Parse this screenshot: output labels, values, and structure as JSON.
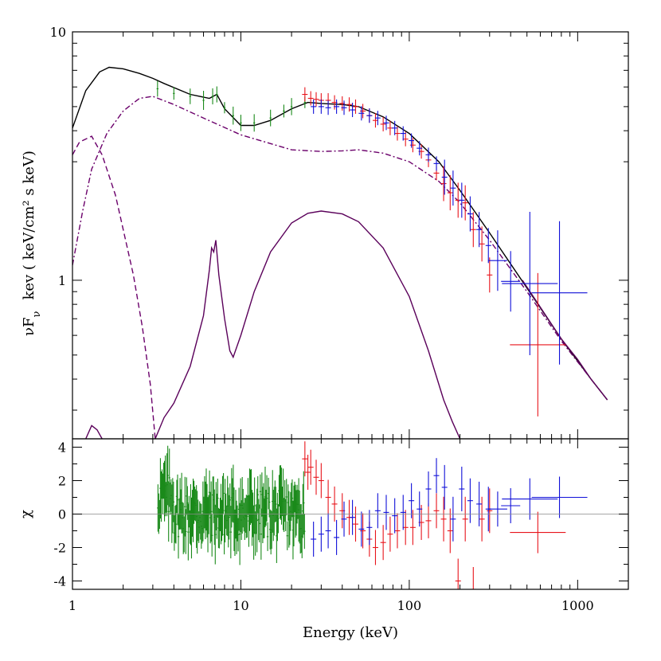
{
  "chart_data": {
    "type": "line",
    "xlabel": "Energy (keV)",
    "x_scale": "log",
    "xlim": [
      1,
      2000
    ],
    "x_ticks": [
      "1",
      "10",
      "100",
      "1000"
    ],
    "panels": [
      {
        "id": "spectrum",
        "ylabel_prefix": "νF",
        "ylabel_sub": "ν",
        "ylabel_unit": "kev ( keV/cm² s keV)",
        "y_scale": "log",
        "ylim": [
          0.23,
          10
        ],
        "y_ticks": [
          "1",
          "10"
        ],
        "models": [
          {
            "style": "solid",
            "color": "#000000",
            "points": [
              [
                1.0,
                4.1
              ],
              [
                1.2,
                5.8
              ],
              [
                1.45,
                6.9
              ],
              [
                1.65,
                7.2
              ],
              [
                2.0,
                7.1
              ],
              [
                2.5,
                6.8
              ],
              [
                3.0,
                6.5
              ],
              [
                3.5,
                6.2
              ],
              [
                5,
                5.6
              ],
              [
                6.5,
                5.4
              ],
              [
                7.2,
                5.6
              ],
              [
                8,
                4.9
              ],
              [
                10,
                4.2
              ],
              [
                12,
                4.2
              ],
              [
                15,
                4.4
              ],
              [
                20,
                4.9
              ],
              [
                25,
                5.2
              ],
              [
                30,
                5.15
              ],
              [
                40,
                5.1
              ],
              [
                50,
                5.0
              ],
              [
                70,
                4.55
              ],
              [
                100,
                3.9
              ],
              [
                150,
                3.0
              ],
              [
                200,
                2.3
              ],
              [
                300,
                1.55
              ],
              [
                500,
                0.93
              ],
              [
                800,
                0.58
              ],
              [
                1200,
                0.4
              ],
              [
                1500,
                0.33
              ]
            ]
          },
          {
            "style": "dashdot",
            "color": "#6b006b",
            "points": [
              [
                1.0,
                1.15
              ],
              [
                1.15,
                1.9
              ],
              [
                1.3,
                2.8
              ],
              [
                1.6,
                3.9
              ],
              [
                2.0,
                4.8
              ],
              [
                2.5,
                5.4
              ],
              [
                3.0,
                5.5
              ],
              [
                4,
                5.1
              ],
              [
                6,
                4.5
              ],
              [
                10,
                3.85
              ],
              [
                20,
                3.35
              ],
              [
                30,
                3.3
              ],
              [
                40,
                3.32
              ],
              [
                50,
                3.35
              ],
              [
                70,
                3.25
              ],
              [
                100,
                3.0
              ],
              [
                150,
                2.5
              ],
              [
                200,
                2.05
              ],
              [
                300,
                1.45
              ],
              [
                500,
                0.9
              ],
              [
                800,
                0.57
              ],
              [
                1200,
                0.4
              ],
              [
                1500,
                0.33
              ]
            ]
          },
          {
            "style": "dashed",
            "color": "#6b006b",
            "points": [
              [
                1.0,
                3.2
              ],
              [
                1.1,
                3.6
              ],
              [
                1.3,
                3.8
              ],
              [
                1.5,
                3.2
              ],
              [
                1.8,
                2.2
              ],
              [
                2.0,
                1.6
              ],
              [
                2.3,
                1.05
              ],
              [
                2.6,
                0.65
              ],
              [
                2.9,
                0.38
              ],
              [
                3.1,
                0.23
              ]
            ]
          },
          {
            "style": "solid",
            "color": "#5a005a",
            "points": [
              [
                1.2,
                0.23
              ],
              [
                1.3,
                0.26
              ],
              [
                1.4,
                0.25
              ],
              [
                1.5,
                0.23
              ]
            ]
          },
          {
            "style": "solid",
            "color": "#5a005a",
            "points": [
              [
                3.1,
                0.23
              ],
              [
                3.5,
                0.28
              ],
              [
                4,
                0.32
              ],
              [
                5,
                0.45
              ],
              [
                6,
                0.72
              ],
              [
                6.5,
                1.1
              ],
              [
                6.7,
                1.35
              ],
              [
                6.9,
                1.3
              ],
              [
                7.1,
                1.45
              ],
              [
                7.4,
                1.05
              ],
              [
                8,
                0.7
              ],
              [
                8.6,
                0.52
              ],
              [
                9,
                0.49
              ],
              [
                10,
                0.6
              ],
              [
                12,
                0.9
              ],
              [
                15,
                1.3
              ],
              [
                20,
                1.7
              ],
              [
                25,
                1.86
              ],
              [
                30,
                1.9
              ],
              [
                40,
                1.85
              ],
              [
                50,
                1.72
              ],
              [
                70,
                1.35
              ],
              [
                100,
                0.86
              ],
              [
                130,
                0.52
              ],
              [
                160,
                0.33
              ],
              [
                180,
                0.27
              ],
              [
                200,
                0.23
              ]
            ]
          },
          {
            "style": "solid",
            "color": "#5a005a",
            "points": [
              [
                470,
                1.0
              ],
              [
                600,
                0.78
              ],
              [
                800,
                0.58
              ],
              [
                1000,
                0.48
              ],
              [
                1200,
                0.4
              ],
              [
                1500,
                0.33
              ]
            ]
          }
        ],
        "data_series": [
          {
            "instrument": "green",
            "color": "#1a8a1a",
            "x_range": [
              3.2,
              24
            ],
            "n": 180,
            "points": [
              [
                3.2,
                5.9
              ],
              [
                4,
                5.65
              ],
              [
                5,
                5.5
              ],
              [
                6,
                5.3
              ],
              [
                6.8,
                5.5
              ],
              [
                7.2,
                5.6
              ],
              [
                8,
                4.95
              ],
              [
                9,
                4.6
              ],
              [
                10,
                4.3
              ],
              [
                12,
                4.3
              ],
              [
                15,
                4.5
              ],
              [
                18,
                4.8
              ],
              [
                20,
                5.0
              ],
              [
                24,
                5.2
              ]
            ]
          },
          {
            "instrument": "red",
            "color": "#e8141b",
            "points": [
              [
                24,
                5.6
              ],
              [
                26,
                5.4
              ],
              [
                28,
                5.35
              ],
              [
                30,
                5.3
              ],
              [
                33,
                5.3
              ],
              [
                36,
                5.2
              ],
              [
                40,
                5.15
              ],
              [
                44,
                5.1
              ],
              [
                48,
                5.0
              ],
              [
                53,
                4.8
              ],
              [
                58,
                4.6
              ],
              [
                63,
                4.4
              ],
              [
                70,
                4.25
              ],
              [
                77,
                4.1
              ],
              [
                85,
                3.9
              ],
              [
                95,
                3.7
              ],
              [
                105,
                3.5
              ],
              [
                118,
                3.3
              ],
              [
                130,
                3.05
              ],
              [
                145,
                2.7
              ],
              [
                160,
                2.45
              ],
              [
                175,
                2.25
              ],
              [
                195,
                2.1
              ],
              [
                215,
                2.05
              ],
              [
                240,
                1.6
              ],
              [
                270,
                1.4
              ],
              [
                300,
                1.05
              ],
              [
                580,
                0.55
              ]
            ]
          },
          {
            "instrument": "blue",
            "color": "#1010d8",
            "points": [
              [
                27,
                5.0
              ],
              [
                30,
                5.0
              ],
              [
                33,
                4.95
              ],
              [
                37,
                5.0
              ],
              [
                41,
                4.95
              ],
              [
                46,
                4.85
              ],
              [
                52,
                4.7
              ],
              [
                58,
                4.6
              ],
              [
                65,
                4.5
              ],
              [
                73,
                4.3
              ],
              [
                82,
                4.1
              ],
              [
                92,
                3.9
              ],
              [
                103,
                3.65
              ],
              [
                115,
                3.4
              ],
              [
                130,
                3.2
              ],
              [
                145,
                2.95
              ],
              [
                162,
                2.6
              ],
              [
                182,
                2.35
              ],
              [
                205,
                2.1
              ],
              [
                230,
                1.85
              ],
              [
                260,
                1.6
              ],
              [
                295,
                1.38
              ],
              [
                335,
                1.2
              ],
              [
                400,
                0.99
              ],
              [
                520,
                0.97
              ],
              [
                780,
                0.89
              ]
            ]
          }
        ]
      },
      {
        "id": "residuals",
        "ylabel": "χ",
        "y_scale": "linear",
        "ylim": [
          -4.5,
          4.5
        ],
        "y_ticks": [
          "-4",
          "-2",
          "0",
          "2",
          "4"
        ],
        "zero_line": true,
        "data_series": [
          {
            "instrument": "green",
            "color": "#1a8a1a",
            "x_range": [
              3.2,
              24
            ],
            "n": 180,
            "scatter_amplitude": 1.4
          },
          {
            "instrument": "red",
            "color": "#e8141b",
            "points": [
              [
                24,
                3.3
              ],
              [
                25,
                2.5
              ],
              [
                26,
                2.8
              ],
              [
                28,
                2.2
              ],
              [
                30,
                2.0
              ],
              [
                33,
                1.0
              ],
              [
                36,
                0.6
              ],
              [
                40,
                0.2
              ],
              [
                44,
                -0.2
              ],
              [
                48,
                -0.6
              ],
              [
                53,
                -1.0
              ],
              [
                58,
                -1.5
              ],
              [
                63,
                -2.0
              ],
              [
                70,
                -1.7
              ],
              [
                77,
                -1.2
              ],
              [
                85,
                -1.0
              ],
              [
                95,
                -0.8
              ],
              [
                105,
                -0.8
              ],
              [
                118,
                -0.5
              ],
              [
                130,
                -0.4
              ],
              [
                145,
                0.2
              ],
              [
                160,
                -0.3
              ],
              [
                175,
                -1.0
              ],
              [
                195,
                -4.0
              ],
              [
                215,
                -0.3
              ],
              [
                240,
                -4.5
              ],
              [
                270,
                -0.3
              ],
              [
                300,
                0.2
              ],
              [
                580,
                -1.1
              ]
            ]
          },
          {
            "instrument": "blue",
            "color": "#1010d8",
            "points": [
              [
                27,
                -1.5
              ],
              [
                30,
                -1.2
              ],
              [
                33,
                -1.0
              ],
              [
                37,
                -1.4
              ],
              [
                41,
                -0.3
              ],
              [
                46,
                -0.2
              ],
              [
                52,
                -0.9
              ],
              [
                58,
                -0.8
              ],
              [
                65,
                0.2
              ],
              [
                73,
                0.1
              ],
              [
                82,
                -0.1
              ],
              [
                92,
                0.1
              ],
              [
                103,
                0.8
              ],
              [
                115,
                0.3
              ],
              [
                130,
                1.5
              ],
              [
                145,
                2.3
              ],
              [
                162,
                1.6
              ],
              [
                182,
                -0.3
              ],
              [
                205,
                1.5
              ],
              [
                230,
                0.8
              ],
              [
                260,
                0.6
              ],
              [
                295,
                0.3
              ],
              [
                335,
                0.3
              ],
              [
                400,
                0.5
              ],
              [
                520,
                0.9
              ],
              [
                780,
                1.0
              ]
            ]
          }
        ]
      }
    ]
  }
}
